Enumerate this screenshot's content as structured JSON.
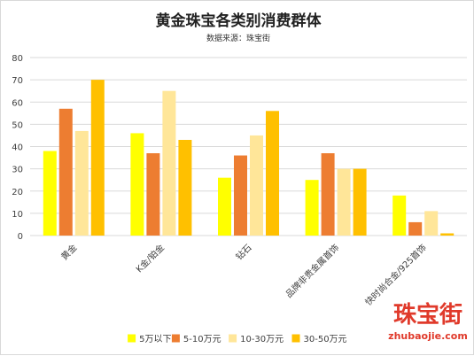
{
  "chart_data": {
    "type": "bar",
    "title": "黄金珠宝各类别消费群体",
    "subtitle": "数据来源：珠宝街",
    "categories": [
      "黄金",
      "K金/铂金",
      "钻石",
      "品牌非贵金属首饰",
      "快时尚合金/925首饰"
    ],
    "series": [
      {
        "name": "5万以下",
        "color": "#ffff00",
        "values": [
          38,
          46,
          26,
          25,
          18
        ]
      },
      {
        "name": "5-10万元",
        "color": "#ed7d31",
        "values": [
          57,
          37,
          36,
          37,
          6
        ]
      },
      {
        "name": "10-30万元",
        "color": "#ffe699",
        "values": [
          47,
          65,
          45,
          30,
          11
        ]
      },
      {
        "name": "30-50万元",
        "color": "#ffc000",
        "values": [
          70,
          43,
          56,
          30,
          1
        ]
      }
    ],
    "ylim": [
      0,
      80
    ],
    "yticks": [
      0,
      10,
      20,
      30,
      40,
      50,
      60,
      70,
      80
    ],
    "grid": true,
    "legend_position": "bottom"
  },
  "watermark": {
    "main": "珠宝街",
    "sub": "zhubaojie.com",
    "color": "#e03a2b"
  }
}
